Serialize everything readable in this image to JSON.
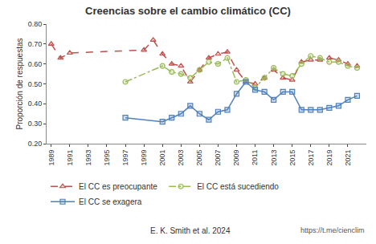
{
  "chart_data": {
    "type": "line",
    "title": "Creencias sobre el cambio climático (CC)",
    "y_label": "Proporción de respuestas",
    "xlim": [
      1988.5,
      2023
    ],
    "xticks": [
      1989,
      1991,
      1993,
      1995,
      1997,
      1999,
      2001,
      2003,
      2005,
      2007,
      2009,
      2011,
      2013,
      2015,
      2017,
      2019,
      2021
    ],
    "ylim": [
      0.2,
      0.8
    ],
    "yticks": [
      {
        "value": 0.2,
        "label": "0.20"
      },
      {
        "value": 0.3,
        "label": "0.30"
      },
      {
        "value": 0.4,
        "label": "0.40"
      },
      {
        "value": 0.5,
        "label": "0.50"
      },
      {
        "value": 0.6,
        "label": "0.60"
      },
      {
        "value": 0.7,
        "label": "0.70"
      },
      {
        "value": 0.8,
        "label": "0.80"
      }
    ],
    "grid": false,
    "legend": "bottom",
    "series": [
      {
        "name": "El CC es preocupante",
        "color": "#c0504d",
        "marker": "triangle-up",
        "line_style": "dash",
        "x": [
          1989,
          1990,
          1991,
          1999,
          2000,
          2001,
          2002,
          2003,
          2004,
          2005,
          2006,
          2007,
          2008,
          2009,
          2010,
          2011,
          2012,
          2013,
          2014,
          2015,
          2016,
          2017,
          2018,
          2019,
          2020,
          2021,
          2022
        ],
        "values": [
          0.7,
          0.63,
          0.655,
          0.67,
          0.72,
          0.65,
          0.6,
          0.59,
          0.51,
          0.57,
          0.63,
          0.65,
          0.66,
          0.57,
          0.51,
          0.5,
          0.53,
          0.57,
          0.53,
          0.52,
          0.61,
          0.62,
          0.62,
          0.63,
          0.62,
          0.6,
          0.59
        ]
      },
      {
        "name": "El CC está sucediendo",
        "color": "#9bbb59",
        "marker": "circle",
        "line_style": "dashdot",
        "x": [
          1997,
          2001,
          2002,
          2003,
          2004,
          2005,
          2006,
          2007,
          2008,
          2009,
          2010,
          2011,
          2012,
          2013,
          2014,
          2015,
          2016,
          2017,
          2018,
          2019,
          2020,
          2021,
          2022
        ],
        "values": [
          0.51,
          0.59,
          0.56,
          0.55,
          0.53,
          0.57,
          0.61,
          0.6,
          0.63,
          0.51,
          0.52,
          0.48,
          0.53,
          0.58,
          0.55,
          0.54,
          0.6,
          0.64,
          0.63,
          0.61,
          0.61,
          0.59,
          0.58
        ]
      },
      {
        "name": "El CC se exagera",
        "color": "#4f81bd",
        "marker": "square",
        "line_style": "solid",
        "x": [
          1997,
          2001,
          2002,
          2003,
          2004,
          2005,
          2006,
          2007,
          2008,
          2009,
          2010,
          2011,
          2012,
          2013,
          2014,
          2015,
          2016,
          2017,
          2018,
          2019,
          2020,
          2021,
          2022
        ],
        "values": [
          0.33,
          0.31,
          0.33,
          0.35,
          0.39,
          0.35,
          0.32,
          0.36,
          0.37,
          0.45,
          0.51,
          0.47,
          0.46,
          0.42,
          0.46,
          0.46,
          0.37,
          0.37,
          0.37,
          0.38,
          0.39,
          0.42,
          0.44
        ]
      }
    ],
    "annotations": [
      "E. K. Smith et al. 2024",
      "https://t.me/cienclim"
    ]
  }
}
